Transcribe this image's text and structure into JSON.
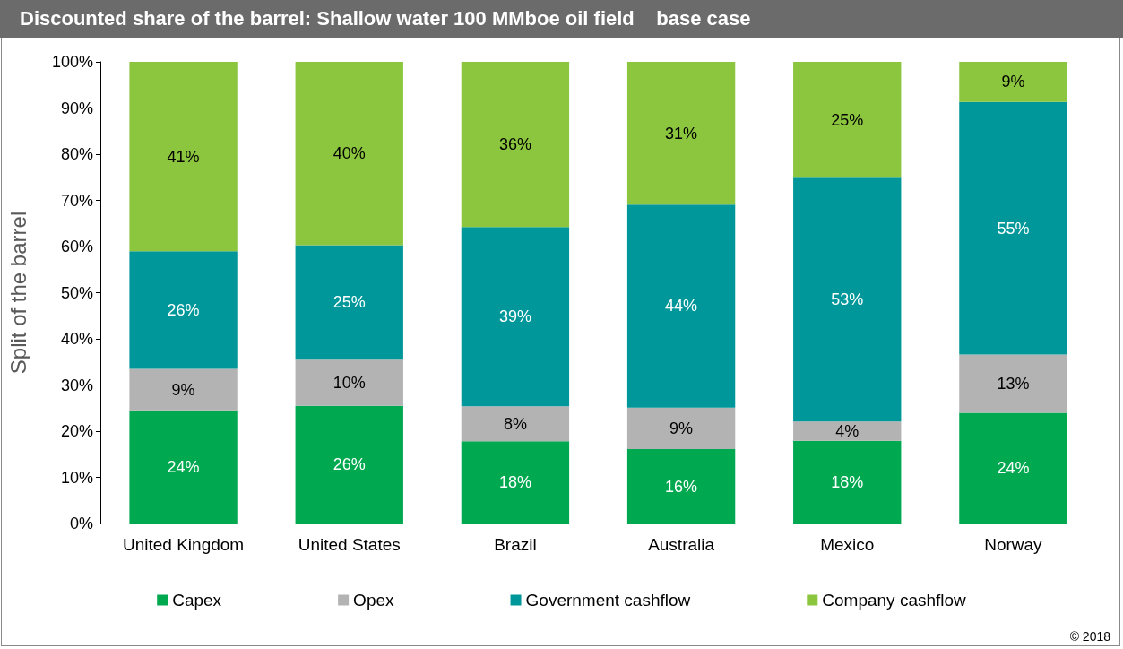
{
  "chart_data": {
    "type": "bar",
    "stacked": true,
    "title": "Discounted share of the barrel: Shallow water 100 MMboe oil field    base case",
    "ylabel": "Split of the barrel",
    "categories": [
      "United Kingdom",
      "United States",
      "Brazil",
      "Australia",
      "Mexico",
      "Norway"
    ],
    "series": [
      {
        "name": "Capex",
        "color": "#00a84f",
        "values": [
          24.5,
          25.5,
          17.8,
          16.1,
          17.9,
          24
        ],
        "value_labels": [
          "24%",
          "26%",
          "18%",
          "16%",
          "18%",
          "24%"
        ]
      },
      {
        "name": "Opex",
        "color": "#b3b3b3",
        "values": [
          9,
          10,
          7.6,
          9,
          4.2,
          12.6
        ],
        "value_labels": [
          "9%",
          "10%",
          "8%",
          "9%",
          "4%",
          "13%"
        ]
      },
      {
        "name": "Government cashflow",
        "color": "#00979a",
        "values": [
          25.5,
          24.8,
          38.8,
          44,
          52.8,
          54.7
        ],
        "value_labels": [
          "26%",
          "25%",
          "39%",
          "44%",
          "53%",
          "55%"
        ]
      },
      {
        "name": "Company cashflow",
        "color": "#8cc63f",
        "values": [
          41,
          39.7,
          35.8,
          30.9,
          25.1,
          8.7
        ],
        "value_labels": [
          "41%",
          "40%",
          "36%",
          "31%",
          "25%",
          "9%"
        ]
      }
    ],
    "ylim": [
      0,
      100
    ],
    "yticks": [
      {
        "value": 0,
        "label": "0%"
      },
      {
        "value": 10,
        "label": "10%"
      },
      {
        "value": 20,
        "label": "20%"
      },
      {
        "value": 30,
        "label": "30%"
      },
      {
        "value": 40,
        "label": "40%"
      },
      {
        "value": 50,
        "label": "50%"
      },
      {
        "value": 60,
        "label": "60%"
      },
      {
        "value": 70,
        "label": "70%"
      },
      {
        "value": 80,
        "label": "80%"
      },
      {
        "value": 90,
        "label": "90%"
      },
      {
        "value": 100,
        "label": "100%"
      }
    ],
    "legend": "bottom",
    "annotations": [
      "© 2018"
    ]
  }
}
